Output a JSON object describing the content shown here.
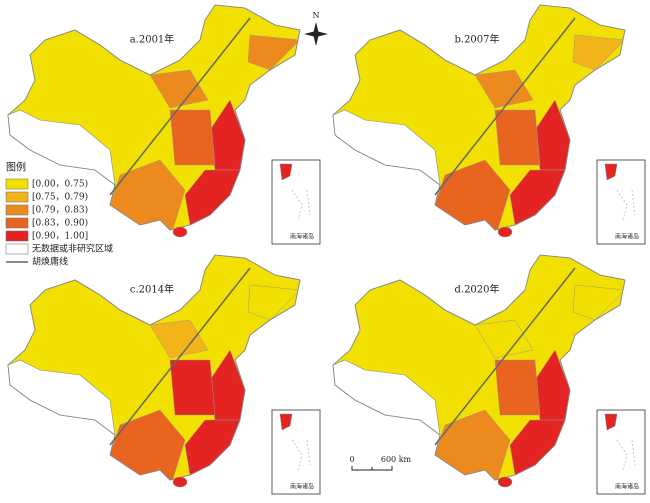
{
  "panels": [
    {
      "title": "a.2001年"
    },
    {
      "title": "b.2007年"
    },
    {
      "title": "c.2014年"
    },
    {
      "title": "d.2020年"
    }
  ],
  "legend": {
    "title": "图例",
    "items": [
      {
        "label": "[0.00，0.75)",
        "color": "#f2e100"
      },
      {
        "label": "[0.75，0.79)",
        "color": "#f2b418"
      },
      {
        "label": "[0.79，0.83)",
        "color": "#ec8a1e"
      },
      {
        "label": "[0.83，0.90)",
        "color": "#e8641f"
      },
      {
        "label": "[0.90，1.00]",
        "color": "#e42323"
      }
    ],
    "no_data": "无数据或非研究区域",
    "hu_line": "胡焕庸线"
  },
  "north": "N",
  "scale": {
    "start": "0",
    "end": "600 km"
  },
  "inset_label": "南海诸岛"
}
